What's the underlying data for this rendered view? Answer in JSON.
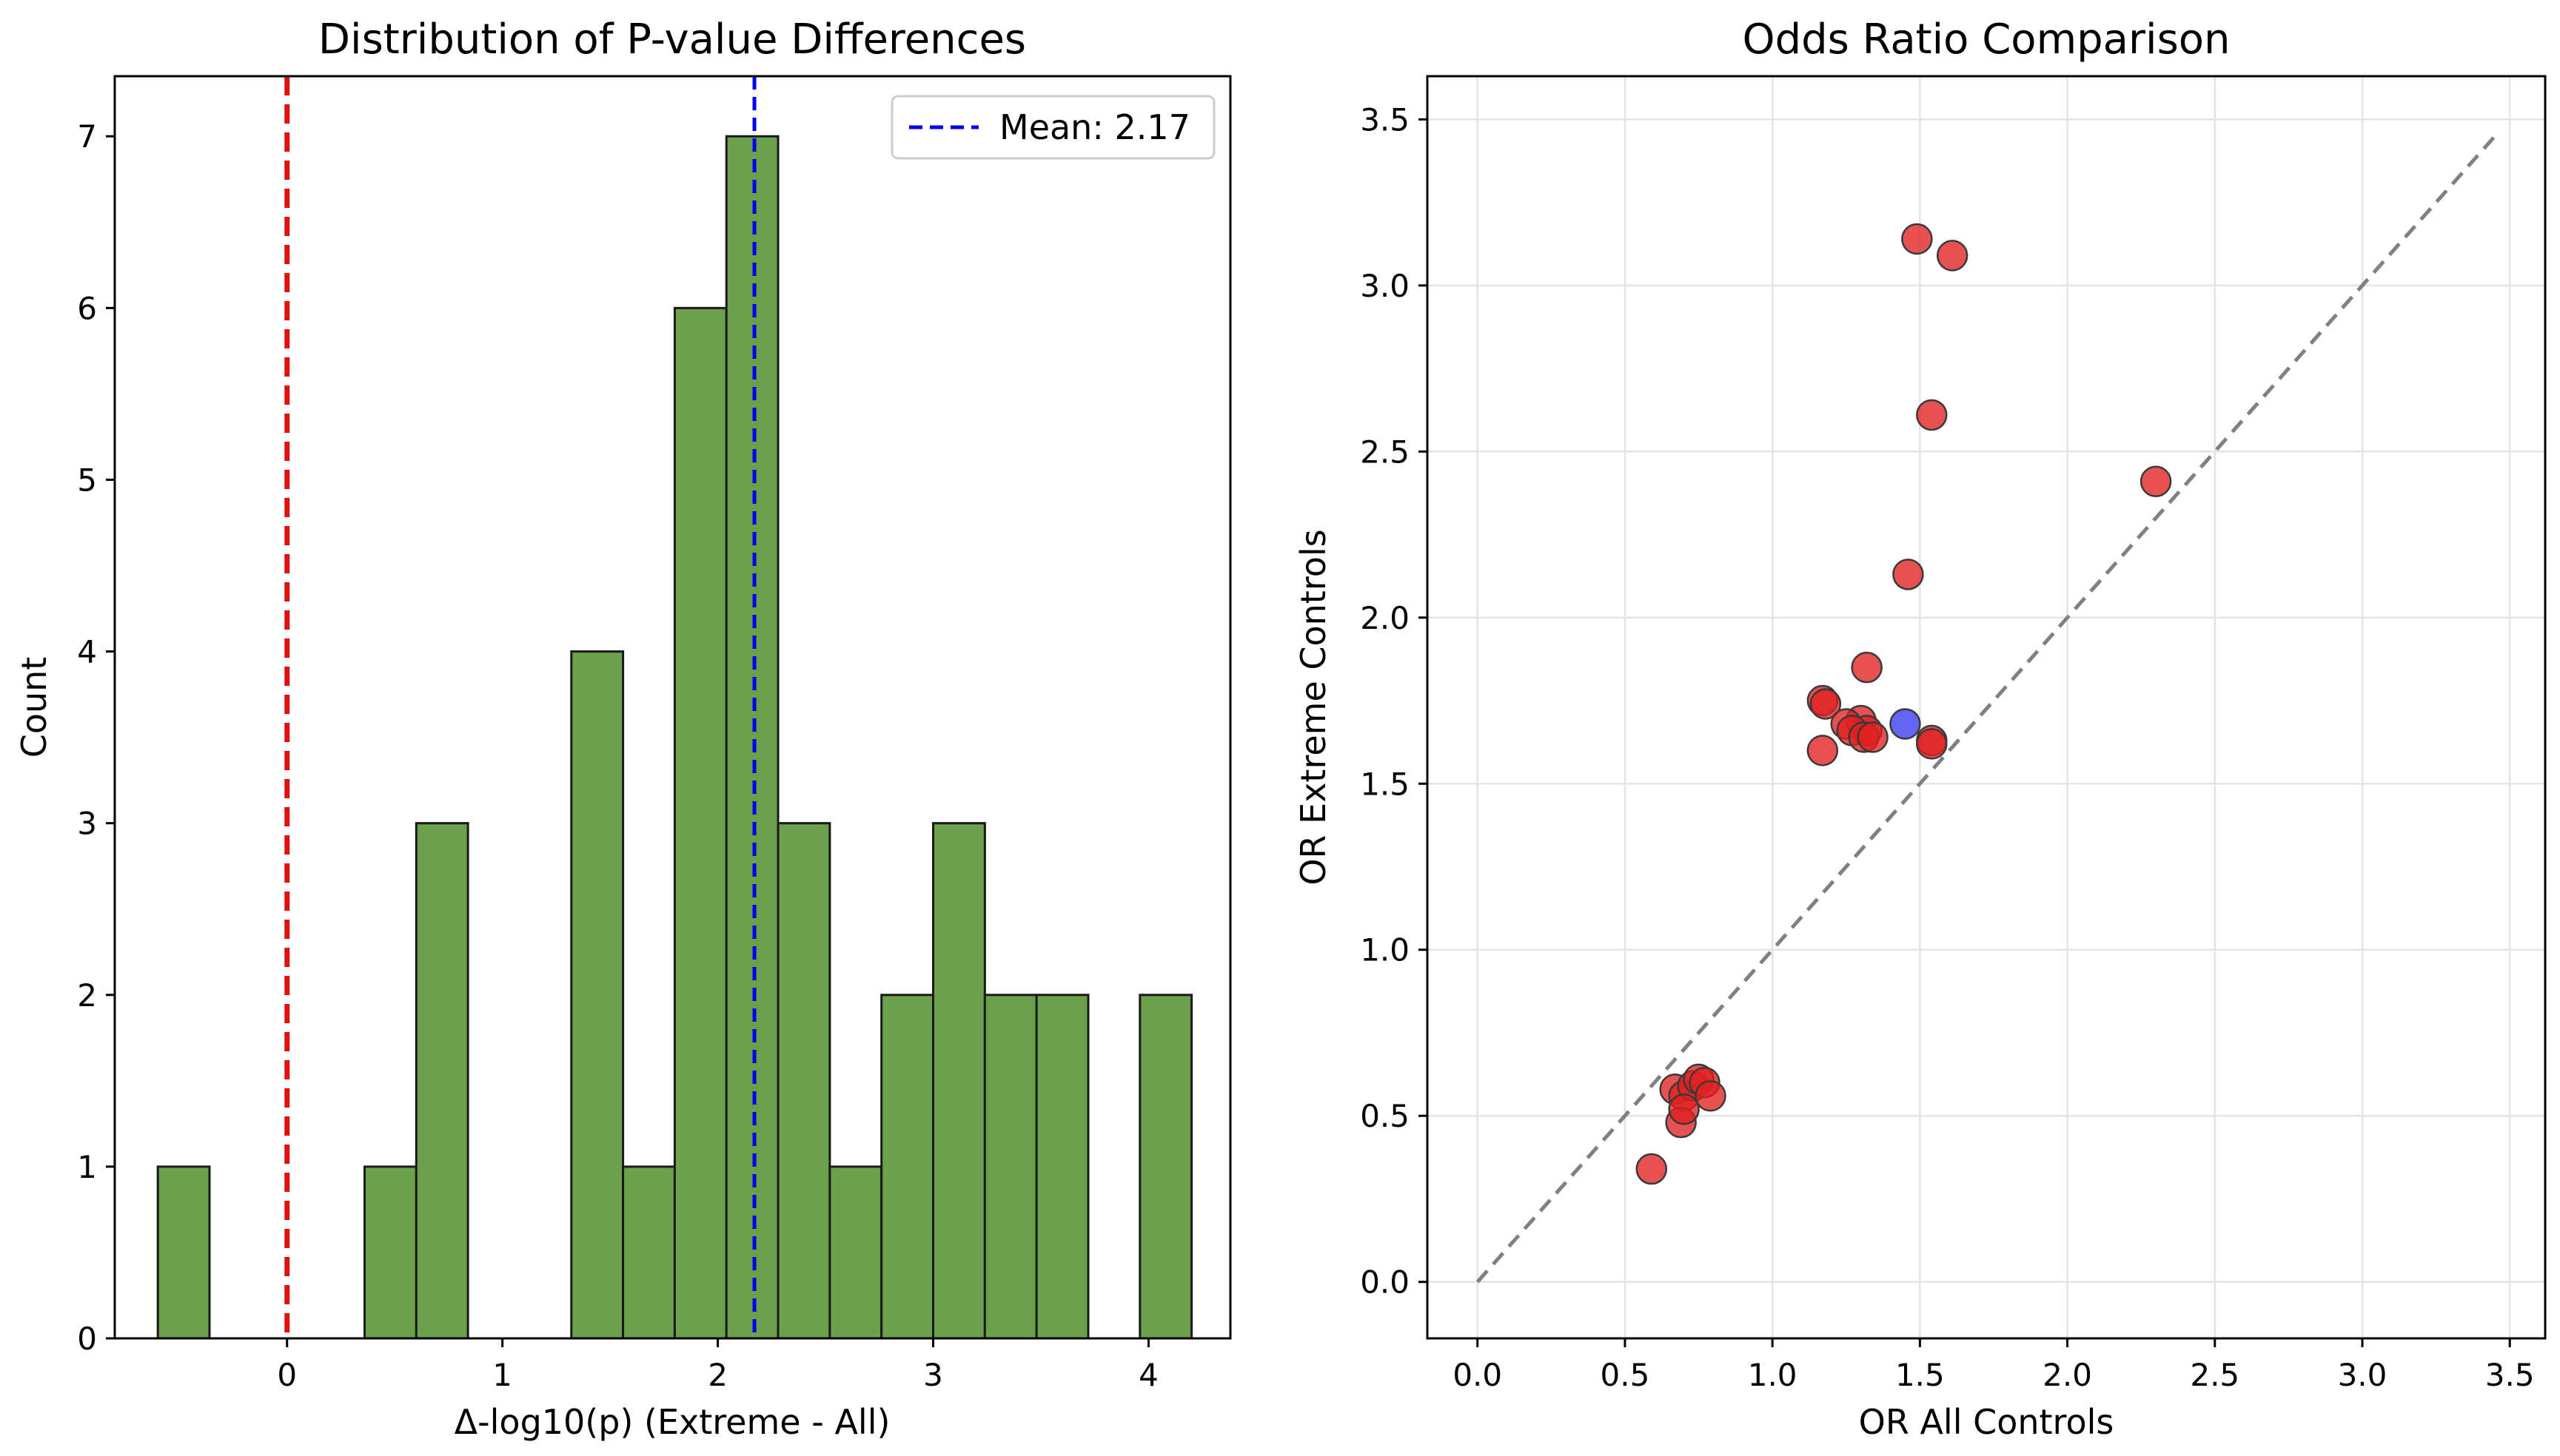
{
  "chart_data": [
    {
      "type": "bar",
      "title": "Distribution of P-value Differences",
      "xlabel": "Δ-log10(p) (Extreme - All)",
      "ylabel": "Count",
      "xlim": [
        -0.8,
        4.38
      ],
      "ylim": [
        0,
        7.35
      ],
      "xticks": [
        0,
        1,
        2,
        3,
        4
      ],
      "yticks": [
        0,
        1,
        2,
        3,
        4,
        5,
        6,
        7
      ],
      "bar_color": "#6aa14a",
      "bar_edge_color": "#1a1a1a",
      "bins": [
        {
          "left": -0.6,
          "right": -0.36,
          "count": 1
        },
        {
          "left": -0.36,
          "right": -0.12,
          "count": 0
        },
        {
          "left": -0.12,
          "right": 0.12,
          "count": 0
        },
        {
          "left": 0.12,
          "right": 0.36,
          "count": 0
        },
        {
          "left": 0.36,
          "right": 0.6,
          "count": 1
        },
        {
          "left": 0.6,
          "right": 0.84,
          "count": 3
        },
        {
          "left": 0.84,
          "right": 1.08,
          "count": 0
        },
        {
          "left": 1.08,
          "right": 1.32,
          "count": 0
        },
        {
          "left": 1.32,
          "right": 1.56,
          "count": 4
        },
        {
          "left": 1.56,
          "right": 1.8,
          "count": 1
        },
        {
          "left": 1.8,
          "right": 2.04,
          "count": 6
        },
        {
          "left": 2.04,
          "right": 2.28,
          "count": 7
        },
        {
          "left": 2.28,
          "right": 2.52,
          "count": 3
        },
        {
          "left": 2.52,
          "right": 2.76,
          "count": 1
        },
        {
          "left": 2.76,
          "right": 3.0,
          "count": 2
        },
        {
          "left": 3.0,
          "right": 3.24,
          "count": 3
        },
        {
          "left": 3.24,
          "right": 3.48,
          "count": 2
        },
        {
          "left": 3.48,
          "right": 3.72,
          "count": 2
        },
        {
          "left": 3.72,
          "right": 3.96,
          "count": 0
        },
        {
          "left": 3.96,
          "right": 4.2,
          "count": 2
        }
      ],
      "reference_line": {
        "x": 0,
        "color": "#dd1111"
      },
      "mean_line": {
        "x": 2.17,
        "color": "#0000ee"
      },
      "legend": {
        "label": "Mean: 2.17",
        "position": "top-right"
      }
    },
    {
      "type": "scatter",
      "title": "Odds Ratio Comparison",
      "xlabel": "OR All Controls",
      "ylabel": "OR Extreme Controls",
      "xlim": [
        -0.17,
        3.62
      ],
      "ylim": [
        -0.17,
        3.63
      ],
      "xticks": [
        "0.0",
        "0.5",
        "1.0",
        "1.5",
        "2.0",
        "2.5",
        "3.0",
        "3.5"
      ],
      "yticks": [
        "0.0",
        "0.5",
        "1.0",
        "1.5",
        "2.0",
        "2.5",
        "3.0",
        "3.5"
      ],
      "grid": true,
      "diagonal_line": {
        "from": [
          0,
          0
        ],
        "to": [
          3.45,
          3.45
        ],
        "color": "#808080"
      },
      "point_colors": {
        "red": "#e02020",
        "blue": "#3a3af2",
        "edge": "#3a3a3a"
      },
      "points": [
        {
          "x": 1.49,
          "y": 3.14,
          "c": "red"
        },
        {
          "x": 1.61,
          "y": 3.09,
          "c": "red"
        },
        {
          "x": 1.54,
          "y": 2.61,
          "c": "red"
        },
        {
          "x": 2.3,
          "y": 2.41,
          "c": "red"
        },
        {
          "x": 1.46,
          "y": 2.13,
          "c": "red"
        },
        {
          "x": 1.32,
          "y": 1.85,
          "c": "red"
        },
        {
          "x": 1.17,
          "y": 1.75,
          "c": "red"
        },
        {
          "x": 1.18,
          "y": 1.74,
          "c": "red"
        },
        {
          "x": 1.3,
          "y": 1.69,
          "c": "red"
        },
        {
          "x": 1.32,
          "y": 1.66,
          "c": "red"
        },
        {
          "x": 1.25,
          "y": 1.68,
          "c": "red"
        },
        {
          "x": 1.27,
          "y": 1.66,
          "c": "red"
        },
        {
          "x": 1.31,
          "y": 1.64,
          "c": "red"
        },
        {
          "x": 1.34,
          "y": 1.64,
          "c": "red"
        },
        {
          "x": 1.17,
          "y": 1.6,
          "c": "red"
        },
        {
          "x": 1.54,
          "y": 1.63,
          "c": "red"
        },
        {
          "x": 1.54,
          "y": 1.62,
          "c": "red"
        },
        {
          "x": 1.45,
          "y": 1.68,
          "c": "blue"
        },
        {
          "x": 0.67,
          "y": 0.58,
          "c": "red"
        },
        {
          "x": 0.7,
          "y": 0.56,
          "c": "red"
        },
        {
          "x": 0.73,
          "y": 0.59,
          "c": "red"
        },
        {
          "x": 0.75,
          "y": 0.61,
          "c": "red"
        },
        {
          "x": 0.77,
          "y": 0.6,
          "c": "red"
        },
        {
          "x": 0.79,
          "y": 0.56,
          "c": "red"
        },
        {
          "x": 0.69,
          "y": 0.48,
          "c": "red"
        },
        {
          "x": 0.7,
          "y": 0.52,
          "c": "red"
        },
        {
          "x": 0.59,
          "y": 0.34,
          "c": "red"
        }
      ]
    }
  ]
}
